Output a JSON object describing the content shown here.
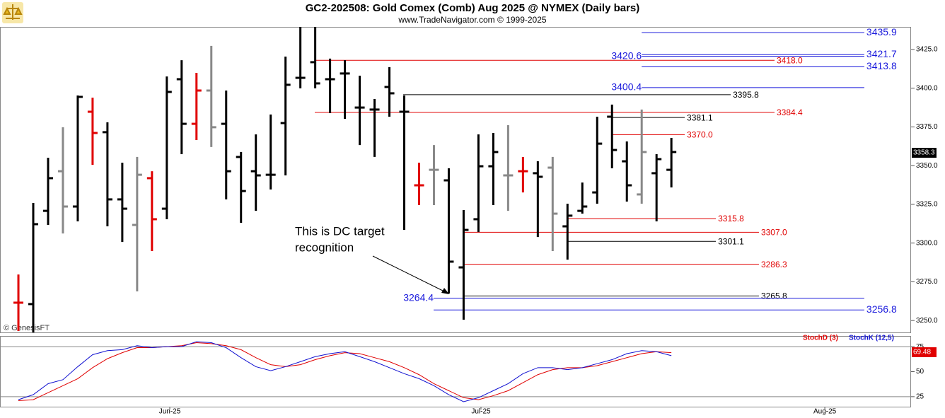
{
  "chart_data": [
    {
      "type": "ohlc",
      "title": "GC2-202508:  Gold Comex (Comb) Aug 2025 @ NYMEX  (Daily bars)",
      "subtitle": "www.TradeNavigator.com © 1999-2025",
      "watermark": "© GenesisFT",
      "annotation": [
        "This is DC target",
        "recognition"
      ],
      "x": [
        0,
        1,
        2,
        3,
        4,
        5,
        6,
        7,
        8,
        9,
        10,
        11,
        12,
        13,
        14,
        15,
        16,
        17,
        18,
        19,
        20,
        21,
        22,
        23,
        24,
        25,
        26,
        27,
        28,
        29,
        30,
        31,
        32,
        33,
        34,
        35,
        36,
        37,
        38,
        39,
        40,
        41,
        42,
        43,
        44
      ],
      "open": [
        3261.5,
        3260.6,
        3320.8,
        3346.4,
        3323.6,
        3384.8,
        3371.6,
        3328.2,
        3311.7,
        3341.9,
        3322.2,
        3405.8,
        3377.0,
        3398.5,
        3377.0,
        3355.6,
        3346.4,
        3344.1,
        3377.5,
        3406.7,
        3416.8,
        3405.8,
        3409.5,
        3387.5,
        3386.2,
        3400.8,
        3384.8,
        3337.3,
        3347.3,
        3340.5,
        3284.3,
        3315.4,
        3349.6,
        3343.7,
        3346.4,
        3345.1,
        3348.7,
        3310.8,
        3320.8,
        3332.7,
        3381.6,
        3352.8,
        3331.4,
        3345.1,
        3347.3
      ],
      "high": [
        3279.7,
        3325.9,
        3355.1,
        3374.8,
        3395.3,
        3393.9,
        3378.0,
        3351.9,
        3355.6,
        3346.4,
        3407.6,
        3418.1,
        3409.9,
        3427.3,
        3398.5,
        3358.8,
        3370.2,
        3383.0,
        3420.4,
        3439.6,
        3439.6,
        3419.1,
        3418.1,
        3408.1,
        3393.0,
        3413.6,
        3395.3,
        3351.9,
        3363.3,
        3348.3,
        3321.3,
        3370.2,
        3371.1,
        3376.1,
        3355.6,
        3352.8,
        3355.6,
        3325.4,
        3339.1,
        3381.6,
        3389.4,
        3365.6,
        3386.2,
        3357.4,
        3367.9
      ],
      "low": [
        3243.2,
        3242.3,
        3311.7,
        3306.2,
        3314.0,
        3350.5,
        3310.8,
        3300.7,
        3268.8,
        3294.8,
        3315.4,
        3357.4,
        3366.5,
        3362.0,
        3328.2,
        3313.1,
        3320.8,
        3334.6,
        3343.7,
        3399.9,
        3399.9,
        3383.9,
        3380.2,
        3363.3,
        3355.6,
        3381.6,
        3308.5,
        3324.5,
        3324.5,
        3267.4,
        3250.5,
        3307.1,
        3324.5,
        3320.8,
        3332.7,
        3303.9,
        3294.8,
        3289.3,
        3319.0,
        3325.4,
        3348.3,
        3326.8,
        3325.4,
        3314.0,
        3335.9
      ],
      "close": [
        3261.5,
        3312.2,
        3341.9,
        3323.6,
        3394.4,
        3371.1,
        3328.2,
        3322.2,
        3344.1,
        3315.4,
        3397.6,
        3377.0,
        3398.5,
        3374.8,
        3346.4,
        3333.6,
        3343.7,
        3344.1,
        3402.2,
        3406.7,
        3403.1,
        3405.8,
        3409.5,
        3387.5,
        3386.2,
        3396.7,
        3384.8,
        3337.3,
        3347.3,
        3288.0,
        3308.5,
        3349.6,
        3358.8,
        3343.7,
        3346.4,
        3342.8,
        3319.0,
        3317.7,
        3323.6,
        3364.2,
        3360.1,
        3337.3,
        3358.8,
        3354.2,
        3358.8
      ],
      "colors": [
        "#e00000",
        "#000000",
        "#000000",
        "#888888",
        "#000000",
        "#e00000",
        "#000000",
        "#000000",
        "#888888",
        "#e00000",
        "#000000",
        "#000000",
        "#e00000",
        "#888888",
        "#000000",
        "#000000",
        "#000000",
        "#000000",
        "#000000",
        "#000000",
        "#000000",
        "#000000",
        "#000000",
        "#000000",
        "#000000",
        "#000000",
        "#000000",
        "#e00000",
        "#888888",
        "#000000",
        "#000000",
        "#000000",
        "#000000",
        "#888888",
        "#e00000",
        "#000000",
        "#888888",
        "#000000",
        "#000000",
        "#000000",
        "#000000",
        "#000000",
        "#888888",
        "#000000",
        "#000000"
      ],
      "xlim": [
        -1.24,
        60.15
      ],
      "ylim": [
        3242.3,
        3439.6
      ],
      "yticks": [
        {
          "value": 3250,
          "label": "3250.0"
        },
        {
          "value": 3275,
          "label": "3275.0"
        },
        {
          "value": 3300,
          "label": "3300.0"
        },
        {
          "value": 3325,
          "label": "3325.0"
        },
        {
          "value": 3350,
          "label": "3350.0"
        },
        {
          "value": 3375,
          "label": "3375.0"
        },
        {
          "value": 3400,
          "label": "3400.0"
        },
        {
          "value": 3425,
          "label": "3425.0"
        }
      ],
      "last_price": 3358.3,
      "levels": [
        {
          "value": 3435.9,
          "color": "#1a1adc",
          "from": 42.0,
          "to": 57.0,
          "side": "right"
        },
        {
          "value": 3421.7,
          "color": "#1a1adc",
          "from": 42.0,
          "to": 57.0,
          "side": "right"
        },
        {
          "value": 3420.6,
          "color": "#1a1adc",
          "from": 42.0,
          "to": 57.0,
          "side": "left"
        },
        {
          "value": 3418,
          "label": "3418.0",
          "color": "#e00000",
          "from": 19.97,
          "to": 50.95,
          "side": "right"
        },
        {
          "value": 3413.8,
          "color": "#1a1adc",
          "from": 42.0,
          "to": 57.0,
          "side": "right"
        },
        {
          "value": 3400.4,
          "color": "#1a1adc",
          "from": 42.0,
          "to": 57.0,
          "side": "left"
        },
        {
          "value": 3395.8,
          "color": "#000000",
          "from": 25.93,
          "to": 48.0,
          "side": "right"
        },
        {
          "value": 3384.4,
          "color": "#e00000",
          "from": 19.97,
          "to": 50.95,
          "side": "right"
        },
        {
          "value": 3381.1,
          "color": "#000000",
          "from": 40.04,
          "to": 44.9,
          "side": "right"
        },
        {
          "value": 3370,
          "label": "3370.0",
          "color": "#e00000",
          "from": 40.04,
          "to": 44.9,
          "side": "right"
        },
        {
          "value": 3315.8,
          "color": "#e00000",
          "from": 36.99,
          "to": 47.0,
          "side": "right"
        },
        {
          "value": 3307,
          "label": "3307.0",
          "color": "#e00000",
          "from": 29.98,
          "to": 49.9,
          "side": "right"
        },
        {
          "value": 3301.1,
          "color": "#000000",
          "from": 36.99,
          "to": 47.0,
          "side": "right"
        },
        {
          "value": 3286.3,
          "color": "#e00000",
          "from": 29.98,
          "to": 49.9,
          "side": "right"
        },
        {
          "value": 3265.8,
          "color": "#000000",
          "from": 29.98,
          "to": 49.9,
          "side": "right"
        },
        {
          "value": 3264.4,
          "color": "#1a1adc",
          "from": 27.98,
          "to": 57.0,
          "side": "left"
        },
        {
          "value": 3256.8,
          "color": "#1a1adc",
          "from": 27.98,
          "to": 57.0,
          "side": "right"
        }
      ]
    },
    {
      "type": "line",
      "x": [
        0,
        1,
        2,
        3,
        4,
        5,
        6,
        7,
        8,
        9,
        10,
        11,
        12,
        13,
        14,
        15,
        16,
        17,
        18,
        19,
        20,
        21,
        22,
        23,
        24,
        25,
        26,
        27,
        28,
        29,
        30,
        31,
        32,
        33,
        34,
        35,
        36,
        37,
        38,
        39,
        40,
        41,
        42,
        43,
        44
      ],
      "series": [
        {
          "name": "StochD (3)",
          "color": "#e00000",
          "values": [
            21,
            22,
            29,
            36,
            43,
            54,
            63,
            69,
            74,
            74,
            75,
            76,
            79,
            78,
            76,
            72,
            64,
            57,
            55,
            57,
            62,
            66,
            69,
            68,
            64,
            60,
            54,
            47,
            38,
            31,
            24,
            22,
            26,
            31,
            39,
            47,
            52,
            54,
            54,
            56,
            60,
            64,
            68,
            70,
            69
          ]
        },
        {
          "name": "StochK (12,5)",
          "color": "#1010d0",
          "values": [
            22,
            27,
            38,
            42,
            55,
            67,
            71,
            72,
            76,
            74,
            75,
            75,
            80,
            79,
            74,
            64,
            55,
            51,
            55,
            60,
            65,
            68,
            70,
            65,
            60,
            54,
            48,
            43,
            36,
            27,
            20,
            24,
            31,
            38,
            48,
            54,
            54,
            52,
            54,
            58,
            62,
            68,
            71,
            70,
            66
          ]
        }
      ],
      "last_value": 69.48,
      "xlim": [
        -1.24,
        60.15
      ],
      "xticks": [
        {
          "value": 10.2,
          "label": "Jun-25"
        },
        {
          "value": 31.17,
          "label": "Jul-25"
        },
        {
          "value": 54.34,
          "label": "Aug-25"
        }
      ],
      "ylim": [
        15,
        85
      ],
      "yticks": [
        25,
        50,
        75
      ],
      "ref_lines": [
        75,
        25
      ]
    }
  ]
}
